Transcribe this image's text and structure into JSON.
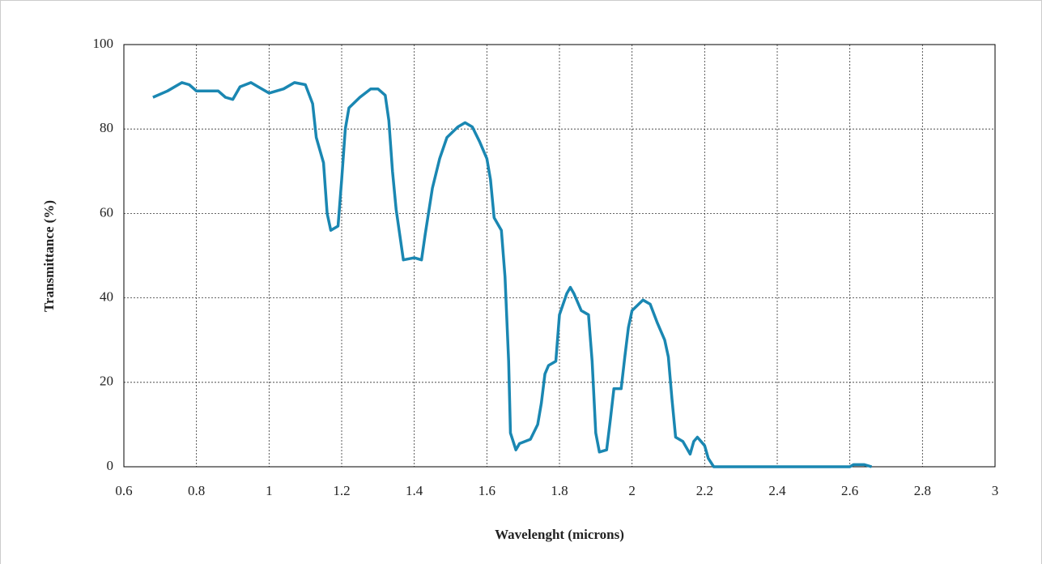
{
  "chart_data": {
    "type": "line",
    "xlabel": "Wavelenght (microns)",
    "ylabel": "Transmittance (%)",
    "x": [
      0.68,
      0.72,
      0.76,
      0.78,
      0.8,
      0.86,
      0.88,
      0.9,
      0.92,
      0.95,
      0.97,
      1.0,
      1.04,
      1.07,
      1.1,
      1.12,
      1.13,
      1.15,
      1.16,
      1.17,
      1.19,
      1.2,
      1.21,
      1.22,
      1.25,
      1.28,
      1.3,
      1.32,
      1.33,
      1.34,
      1.35,
      1.36,
      1.37,
      1.4,
      1.42,
      1.43,
      1.45,
      1.47,
      1.49,
      1.52,
      1.54,
      1.56,
      1.58,
      1.6,
      1.61,
      1.62,
      1.64,
      1.65,
      1.66,
      1.665,
      1.68,
      1.69,
      1.72,
      1.74,
      1.75,
      1.76,
      1.77,
      1.79,
      1.8,
      1.82,
      1.83,
      1.84,
      1.86,
      1.88,
      1.89,
      1.9,
      1.91,
      1.93,
      1.94,
      1.95,
      1.97,
      1.98,
      1.99,
      2.0,
      2.03,
      2.05,
      2.07,
      2.09,
      2.1,
      2.11,
      2.12,
      2.14,
      2.16,
      2.17,
      2.18,
      2.2,
      2.21,
      2.225,
      2.3,
      2.4,
      2.5,
      2.6,
      2.61,
      2.64,
      2.66
    ],
    "values": [
      87.5,
      89,
      91,
      90.5,
      89,
      89,
      87.5,
      87,
      90,
      91,
      90,
      88.5,
      89.5,
      91,
      90.5,
      86,
      78,
      72,
      60,
      56,
      57,
      68,
      80,
      85,
      87.5,
      89.5,
      89.5,
      88,
      82,
      70,
      61,
      55,
      49,
      49.5,
      49,
      55,
      66,
      73,
      78,
      80.5,
      81.5,
      80.5,
      77,
      73,
      68,
      59,
      56,
      45,
      25,
      8,
      4,
      5.5,
      6.5,
      10,
      15,
      22,
      24,
      25,
      36,
      41,
      42.5,
      41,
      37,
      36,
      25,
      8,
      3.5,
      4,
      11,
      18.5,
      18.5,
      26,
      33,
      37,
      39.5,
      38.5,
      34,
      30,
      26,
      16,
      7,
      6,
      3,
      6,
      7,
      5,
      2,
      0,
      0,
      0,
      0,
      0,
      0.5,
      0.5,
      0
    ],
    "color": "#1a87b2",
    "xlim": [
      0.6,
      3
    ],
    "xticks": [
      0.6,
      0.8,
      1,
      1.2,
      1.4,
      1.6,
      1.8,
      2,
      2.2,
      2.4,
      2.6,
      2.8,
      3
    ],
    "ylim": [
      0,
      100
    ],
    "yticks": [
      0,
      20,
      40,
      60,
      80,
      100
    ],
    "grid": true
  }
}
